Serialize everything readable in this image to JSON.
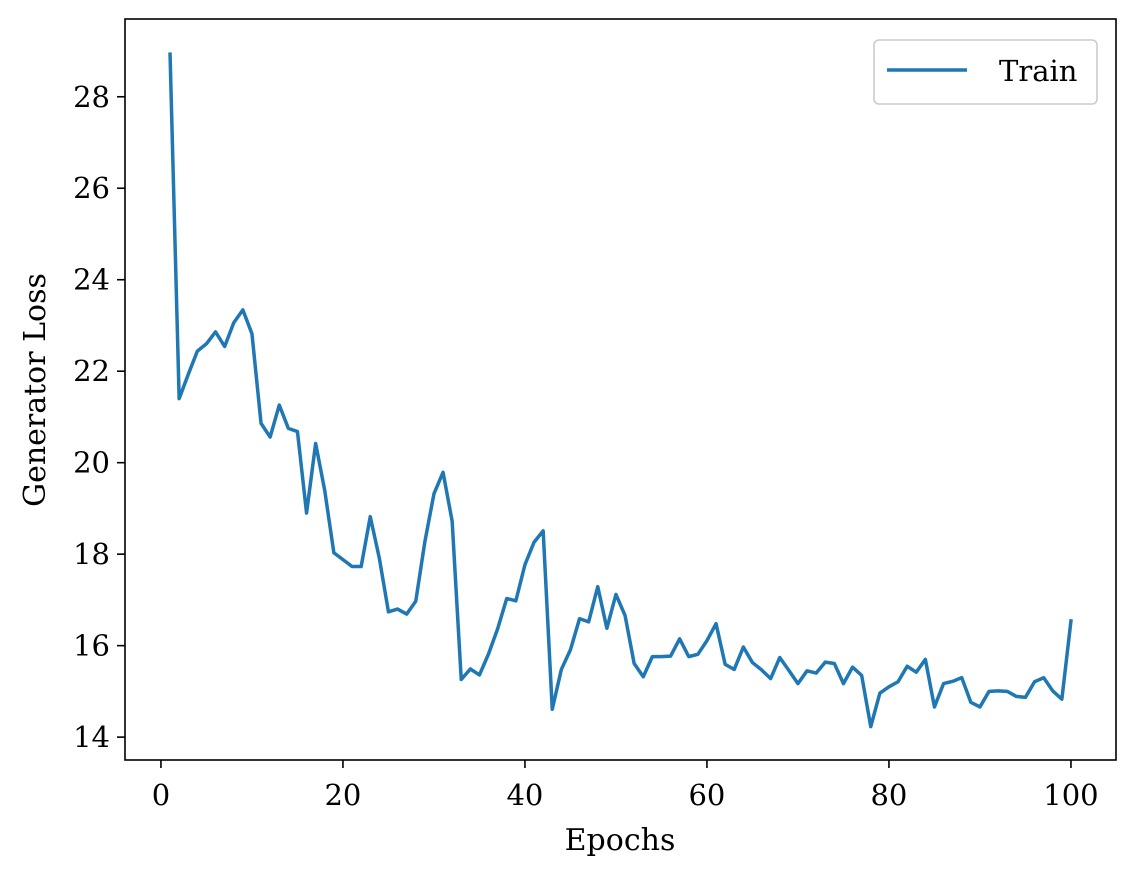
{
  "colors": {
    "series": "#1f77b4",
    "axes": "#000000",
    "background": "#ffffff",
    "legend_border": "#cccccc"
  },
  "chart_data": {
    "type": "line",
    "title": "",
    "xlabel": "Epochs",
    "ylabel": "Generator Loss",
    "xlim": [
      -3.95,
      104.95
    ],
    "ylim": [
      13.5,
      29.7
    ],
    "xticks": [
      0,
      20,
      40,
      60,
      80,
      100
    ],
    "yticks": [
      14,
      16,
      18,
      20,
      22,
      24,
      26,
      28
    ],
    "grid": false,
    "legend": {
      "placement": "top-right",
      "entries": [
        "Train"
      ]
    },
    "series": [
      {
        "name": "Train",
        "x": [
          1,
          2,
          3,
          4,
          5,
          6,
          7,
          8,
          9,
          10,
          11,
          12,
          13,
          14,
          15,
          16,
          17,
          18,
          19,
          20,
          21,
          22,
          23,
          24,
          25,
          26,
          27,
          28,
          29,
          30,
          31,
          32,
          33,
          34,
          35,
          36,
          37,
          38,
          39,
          40,
          41,
          42,
          43,
          44,
          45,
          46,
          47,
          48,
          49,
          50,
          51,
          52,
          53,
          54,
          55,
          56,
          57,
          58,
          59,
          60,
          61,
          62,
          63,
          64,
          65,
          66,
          67,
          68,
          69,
          70,
          71,
          72,
          73,
          74,
          75,
          76,
          77,
          78,
          79,
          80,
          81,
          82,
          83,
          84,
          85,
          86,
          87,
          88,
          89,
          90,
          91,
          92,
          93,
          94,
          95,
          96,
          97,
          98,
          99,
          100
        ],
        "values": [
          28.93,
          21.4,
          21.93,
          22.44,
          22.6,
          22.86,
          22.54,
          23.06,
          23.34,
          22.82,
          20.86,
          20.56,
          21.26,
          20.75,
          20.68,
          18.9,
          20.42,
          19.39,
          18.03,
          17.88,
          17.73,
          17.73,
          18.82,
          17.91,
          16.74,
          16.8,
          16.69,
          16.97,
          18.27,
          19.32,
          19.79,
          18.72,
          15.26,
          15.49,
          15.36,
          15.82,
          16.37,
          17.03,
          16.98,
          17.77,
          18.26,
          18.51,
          14.61,
          15.48,
          15.91,
          16.59,
          16.52,
          17.29,
          16.38,
          17.12,
          16.66,
          15.61,
          15.32,
          15.76,
          15.76,
          15.77,
          16.15,
          15.76,
          15.81,
          16.11,
          16.48,
          15.59,
          15.48,
          15.97,
          15.63,
          15.47,
          15.28,
          15.74,
          15.46,
          15.17,
          15.45,
          15.4,
          15.64,
          15.61,
          15.17,
          15.53,
          15.35,
          14.23,
          14.96,
          15.1,
          15.21,
          15.55,
          15.42,
          15.7,
          14.66,
          15.17,
          15.22,
          15.3,
          14.76,
          14.66,
          15.0,
          15.01,
          15.0,
          14.89,
          14.87,
          15.21,
          15.3,
          15.01,
          14.83,
          16.54
        ]
      }
    ]
  }
}
